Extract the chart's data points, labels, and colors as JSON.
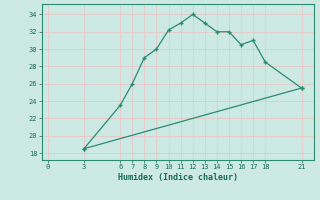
{
  "xlabel": "Humidex (Indice chaleur)",
  "line1_x": [
    3,
    6,
    7,
    8,
    9,
    10,
    11,
    12,
    13,
    14,
    15,
    16,
    17,
    18,
    21
  ],
  "line1_y": [
    18.5,
    23.5,
    26,
    29,
    30,
    32.2,
    33,
    34,
    33,
    32,
    32,
    30.5,
    31,
    28.5,
    25.5
  ],
  "line2_x": [
    3,
    21
  ],
  "line2_y": [
    18.5,
    25.5
  ],
  "line_color": "#2d8b74",
  "bg_color": "#cce9e4",
  "grid_color": "#e8c8c8",
  "xticks": [
    0,
    3,
    6,
    7,
    8,
    9,
    10,
    11,
    12,
    13,
    14,
    15,
    16,
    17,
    18,
    21
  ],
  "yticks": [
    18,
    20,
    22,
    24,
    26,
    28,
    30,
    32,
    34
  ],
  "xlim": [
    -0.5,
    22
  ],
  "ylim": [
    17.2,
    35.2
  ]
}
